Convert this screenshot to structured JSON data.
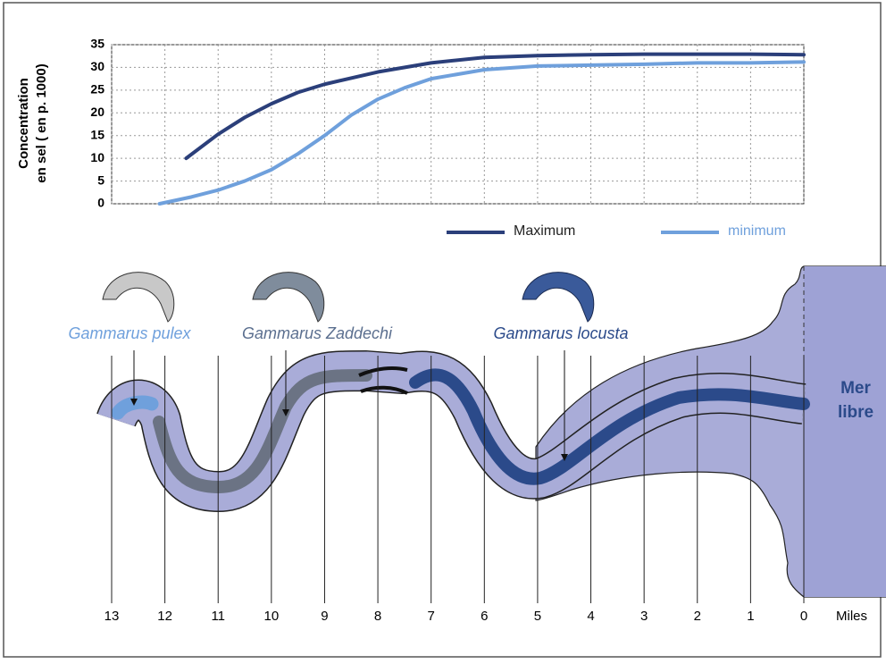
{
  "chart_data": {
    "type": "line",
    "ylabel": [
      "Concentration",
      "en sel ( en p. 1000)"
    ],
    "xlabel": "Miles",
    "xlim": [
      13,
      0
    ],
    "xticks": [
      13,
      12,
      11,
      10,
      9,
      8,
      7,
      6,
      5,
      4,
      3,
      2,
      1,
      0
    ],
    "ylim": [
      0,
      35
    ],
    "yticks": [
      0,
      5,
      10,
      15,
      20,
      25,
      30,
      35
    ],
    "grid": true,
    "series": [
      {
        "name": "Maximum",
        "color": "#2b3f7a",
        "x": [
          11.6,
          11,
          10.5,
          10,
          9.5,
          9,
          8,
          7,
          6,
          5,
          4,
          3,
          2,
          1,
          0
        ],
        "values": [
          10,
          15.3,
          19,
          22,
          24.5,
          26.3,
          29,
          31,
          32.2,
          32.6,
          32.8,
          32.9,
          32.9,
          32.9,
          32.8
        ]
      },
      {
        "name": "minimum",
        "color": "#6fa0dc",
        "x": [
          12.1,
          11.5,
          11,
          10.5,
          10,
          9.5,
          9,
          8.5,
          8,
          7.5,
          7,
          6,
          5,
          4,
          3,
          2,
          1,
          0
        ],
        "values": [
          0,
          1.5,
          3,
          5,
          7.5,
          11,
          15,
          19.5,
          23,
          25.5,
          27.5,
          29.5,
          30.3,
          30.5,
          30.7,
          31,
          31,
          31.2
        ]
      }
    ]
  },
  "diagram": {
    "species": [
      {
        "label": "Gammarus pulex",
        "color": "#6fa0dc"
      },
      {
        "label": "Gammarus Zaddechi",
        "color": "#5b6f8f"
      },
      {
        "label": "Gammarus locusta",
        "color": "#2b4a8a"
      }
    ],
    "sea_label": [
      "Mer",
      "libre"
    ]
  }
}
